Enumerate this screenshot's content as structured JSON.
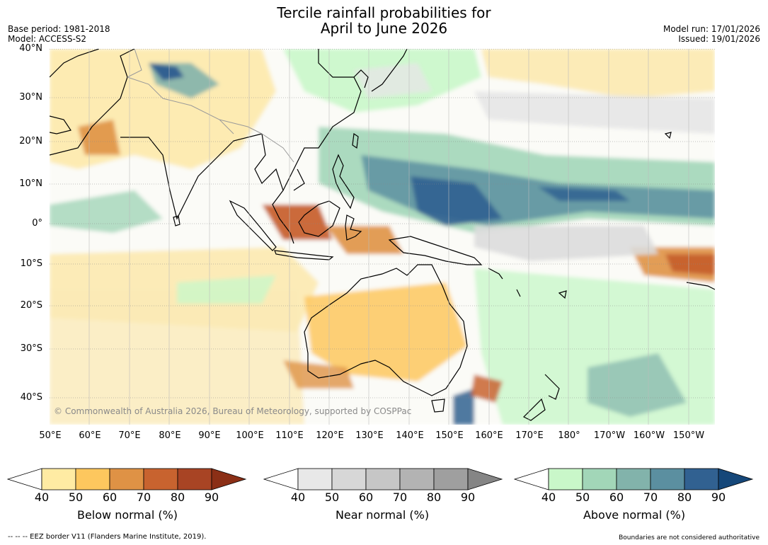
{
  "title": {
    "line1": "Tercile rainfall probabilities for",
    "line2": "April to June 2026"
  },
  "meta_left": {
    "base_period": "Base period: 1981-2018",
    "model": "Model: ACCESS-S2"
  },
  "meta_right": {
    "model_run": "Model run: 17/01/2026",
    "issued": "Issued: 19/01/2026"
  },
  "map": {
    "lat_labels": [
      "40°N",
      "30°N",
      "20°N",
      "10°N",
      "0°",
      "10°S",
      "20°S",
      "30°S",
      "40°S"
    ],
    "lon_labels": [
      "50°E",
      "60°E",
      "70°E",
      "80°E",
      "90°E",
      "100°E",
      "110°E",
      "120°E",
      "130°E",
      "140°E",
      "150°E",
      "160°E",
      "170°E",
      "180°",
      "170°W",
      "160°W",
      "150°W"
    ],
    "copyright": "© Commonwealth of Australia 2026, Bureau of Meteorology, supported by COSPPac"
  },
  "colorbars": [
    {
      "name": "below",
      "label": "Below normal (%)",
      "ticks": [
        "40",
        "50",
        "60",
        "70",
        "80",
        "90"
      ],
      "colors": [
        "#ffeba3",
        "#fdc75e",
        "#df9245",
        "#c8632f",
        "#a84424",
        "#8b2f16"
      ]
    },
    {
      "name": "near",
      "label": "Near normal (%)",
      "ticks": [
        "40",
        "50",
        "60",
        "70",
        "80",
        "90"
      ],
      "colors": [
        "#e8e8e8",
        "#d7d7d7",
        "#c6c6c6",
        "#b3b3b3",
        "#9f9f9f",
        "#858585"
      ]
    },
    {
      "name": "above",
      "label": "Above normal (%)",
      "ticks": [
        "40",
        "50",
        "60",
        "70",
        "80",
        "90"
      ],
      "colors": [
        "#c9f7c9",
        "#a2d6b8",
        "#82b3ab",
        "#5b8fa0",
        "#316191",
        "#154779"
      ]
    }
  ],
  "footer": {
    "eez": "--  --  -- EEZ border V11 (Flanders Marine Institute, 2019).",
    "boundaries": "Boundaries are not considered authoritative"
  },
  "colors": {
    "grid": "#888888",
    "coast": "#000000",
    "border": "#9a9a9a"
  }
}
